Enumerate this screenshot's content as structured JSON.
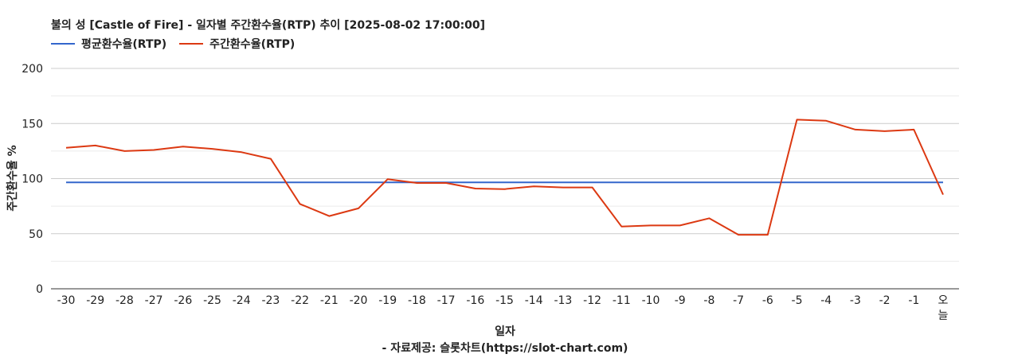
{
  "chart_data": {
    "type": "line",
    "title": "불의 성 [Castle of Fire] - 일자별 주간환수율(RTP) 추이 [2025-08-02 17:00:00]",
    "xlabel": "일자",
    "ylabel": "주간환수율 %",
    "source_note": "- 자료제공: 슬롯차트(https://slot-chart.com)",
    "categories": [
      "-30",
      "-29",
      "-28",
      "-27",
      "-26",
      "-25",
      "-24",
      "-23",
      "-22",
      "-21",
      "-20",
      "-19",
      "-18",
      "-17",
      "-16",
      "-15",
      "-14",
      "-13",
      "-12",
      "-11",
      "-10",
      "-9",
      "-8",
      "-7",
      "-6",
      "-5",
      "-4",
      "-3",
      "-2",
      "-1",
      "오늘"
    ],
    "ylim": [
      0,
      200
    ],
    "yticks": [
      0,
      50,
      100,
      150,
      200
    ],
    "grid": true,
    "legend_position": "top-left",
    "series": [
      {
        "name": "평균환수율(RTP)",
        "color": "#3366cc",
        "values": [
          96.5,
          96.5,
          96.5,
          96.5,
          96.5,
          96.5,
          96.5,
          96.5,
          96.5,
          96.5,
          96.5,
          96.5,
          96.5,
          96.5,
          96.5,
          96.5,
          96.5,
          96.5,
          96.5,
          96.5,
          96.5,
          96.5,
          96.5,
          96.5,
          96.5,
          96.5,
          96.5,
          96.5,
          96.5,
          96.5,
          96.5
        ]
      },
      {
        "name": "주간환수율(RTP)",
        "color": "#dc3912",
        "values": [
          128,
          130,
          125,
          126,
          129,
          127,
          124,
          118,
          77,
          66,
          73,
          99.5,
          96,
          96,
          91,
          90.5,
          93,
          92,
          92,
          56.5,
          57.5,
          57.5,
          64,
          49,
          49,
          153.5,
          152.5,
          144.5,
          143,
          144.5,
          85.5
        ]
      }
    ]
  }
}
